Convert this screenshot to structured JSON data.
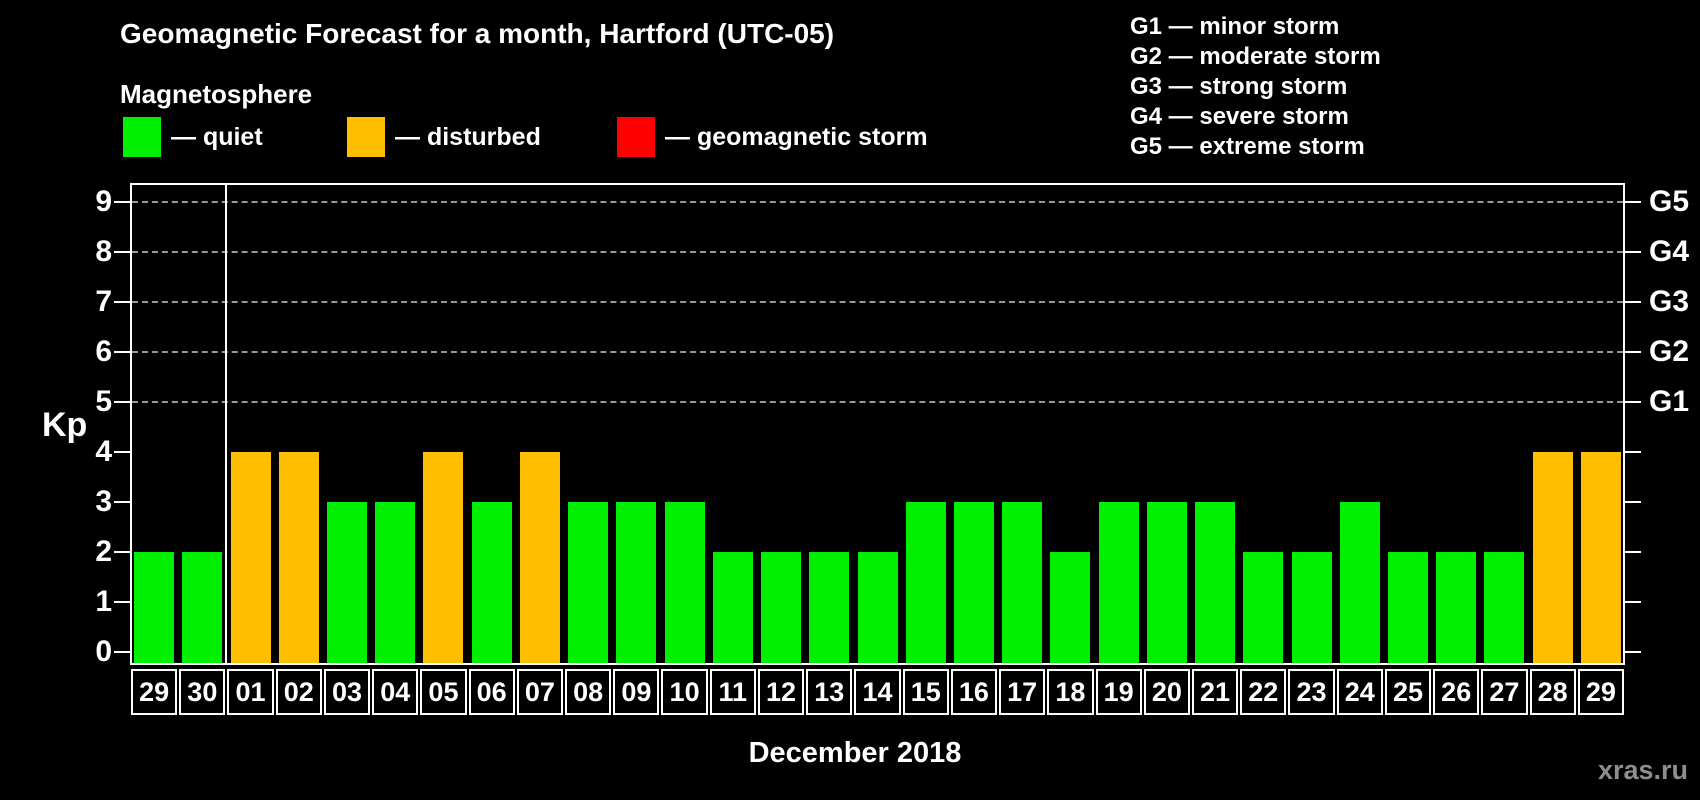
{
  "header": {
    "title": "Geomagnetic Forecast for a month, Hartford (UTC-05)",
    "subtitle": "Magnetosphere"
  },
  "legend": {
    "items": [
      {
        "name": "quiet",
        "label": "— quiet",
        "color": "#00f000"
      },
      {
        "name": "disturbed",
        "label": "— disturbed",
        "color": "#ffbf00"
      },
      {
        "name": "storm",
        "label": "— geomagnetic storm",
        "color": "#ff0000"
      }
    ]
  },
  "g_legend": {
    "lines": [
      "G1 — minor storm",
      "G2 — moderate storm",
      "G3 — strong storm",
      "G4 — severe storm",
      "G5 — extreme storm"
    ]
  },
  "chart_data": {
    "type": "bar",
    "title": "Geomagnetic Forecast for a month, Hartford (UTC-05)",
    "subtitle": "Magnetosphere",
    "xlabel": "December 2018",
    "ylabel": "Kp",
    "ylim": [
      0,
      9
    ],
    "yticks": [
      0,
      1,
      2,
      3,
      4,
      5,
      6,
      7,
      8,
      9
    ],
    "grid_levels": [
      5,
      6,
      7,
      8,
      9
    ],
    "grid_on": true,
    "right_axis": [
      {
        "label": "G1",
        "kp": 5
      },
      {
        "label": "G2",
        "kp": 6
      },
      {
        "label": "G3",
        "kp": 7
      },
      {
        "label": "G4",
        "kp": 8
      },
      {
        "label": "G5",
        "kp": 9
      }
    ],
    "categories": [
      "29",
      "30",
      "01",
      "02",
      "03",
      "04",
      "05",
      "06",
      "07",
      "08",
      "09",
      "10",
      "11",
      "12",
      "13",
      "14",
      "15",
      "16",
      "17",
      "18",
      "19",
      "20",
      "21",
      "22",
      "23",
      "24",
      "25",
      "26",
      "27",
      "28",
      "29"
    ],
    "values": [
      2,
      2,
      4,
      4,
      3,
      3,
      4,
      3,
      4,
      3,
      3,
      3,
      2,
      2,
      2,
      2,
      3,
      3,
      3,
      2,
      3,
      3,
      3,
      2,
      2,
      3,
      2,
      2,
      2,
      4,
      4
    ],
    "statuses": [
      "quiet",
      "quiet",
      "disturbed",
      "disturbed",
      "quiet",
      "quiet",
      "disturbed",
      "quiet",
      "disturbed",
      "quiet",
      "quiet",
      "quiet",
      "quiet",
      "quiet",
      "quiet",
      "quiet",
      "quiet",
      "quiet",
      "quiet",
      "quiet",
      "quiet",
      "quiet",
      "quiet",
      "quiet",
      "quiet",
      "quiet",
      "quiet",
      "quiet",
      "quiet",
      "disturbed",
      "disturbed"
    ],
    "separator_after_index": 1,
    "colors": {
      "quiet": "#00f000",
      "disturbed": "#ffbf00",
      "storm": "#ff0000"
    },
    "legend_position": "top-left"
  },
  "footer": {
    "watermark": "xras.ru"
  }
}
